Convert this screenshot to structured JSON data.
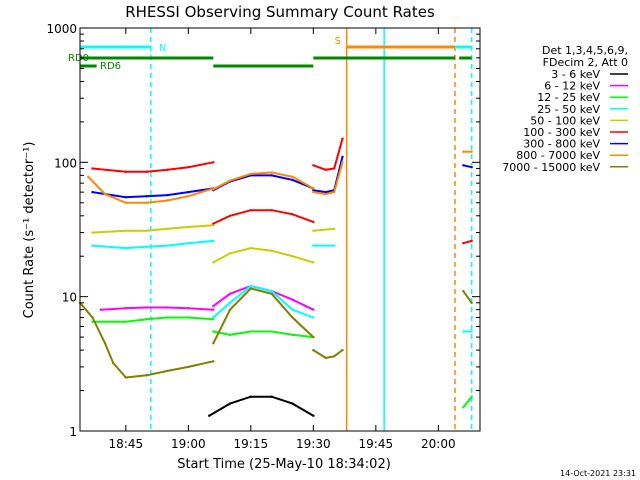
{
  "chart_data": {
    "type": "line",
    "title": "RHESSI Observing Summary Count Rates",
    "xlabel": "Start Time (25-May-10 18:34:02)",
    "ylabel": "Count Rate (s⁻¹ detector⁻¹)",
    "yscale": "log",
    "ylim": [
      1,
      1000
    ],
    "xlim": [
      "18:34",
      "20:10"
    ],
    "xtick_labels": [
      "18:45",
      "19:00",
      "19:15",
      "19:30",
      "19:45",
      "20:00"
    ],
    "ytick_labels": [
      "1",
      "10",
      "100",
      "1000"
    ],
    "legend_header": [
      "Det 1,3,4,5,6,9,",
      "FDecim 2, Att 0"
    ],
    "footer": "14-Oct-2021 23:31",
    "flag_bars": [
      {
        "label": "N",
        "color": "#00ffff",
        "row": "top",
        "spans": [
          [
            "18:34",
            "18:51"
          ],
          [
            "19:47",
            "20:08"
          ]
        ]
      },
      {
        "label": "S",
        "color": "#ff8800",
        "row": "top",
        "spans": [
          [
            "19:38",
            "20:04"
          ]
        ]
      },
      {
        "label": "RD0",
        "color": "#008800",
        "row": "middle",
        "spans": [
          [
            "18:34",
            "19:06"
          ],
          [
            "19:30",
            "20:04"
          ],
          [
            "20:05",
            "20:08"
          ]
        ]
      },
      {
        "label": "RD6",
        "color": "#008800",
        "row": "bottom",
        "spans": [
          [
            "18:34",
            "18:38"
          ],
          [
            "19:06",
            "19:30"
          ]
        ]
      }
    ],
    "vertical_markers": [
      {
        "time": "18:51",
        "color": "#00ffff",
        "style": "dashed"
      },
      {
        "time": "19:38",
        "color": "#ff8800",
        "style": "solid"
      },
      {
        "time": "19:47",
        "color": "#00ffff",
        "style": "solid"
      },
      {
        "time": "20:04",
        "color": "#ff8800",
        "style": "dashed"
      },
      {
        "time": "20:08",
        "color": "#00ffff",
        "style": "dashed"
      }
    ],
    "series": [
      {
        "name": "3 - 6 keV",
        "color": "#000000",
        "segments": [
          {
            "t": [
              "19:05",
              "19:10",
              "19:15",
              "19:20",
              "19:25",
              "19:30"
            ],
            "v": [
              1.3,
              1.6,
              1.8,
              1.8,
              1.6,
              1.3
            ]
          }
        ]
      },
      {
        "name": "6 - 12 keV",
        "color": "#ff00ff",
        "segments": [
          {
            "t": [
              "18:39",
              "18:45",
              "18:50",
              "18:55",
              "19:00",
              "19:06"
            ],
            "v": [
              8.0,
              8.2,
              8.3,
              8.3,
              8.2,
              8.0
            ]
          },
          {
            "t": [
              "19:06",
              "19:10",
              "19:15",
              "19:20",
              "19:25",
              "19:30"
            ],
            "v": [
              8.5,
              10.5,
              12.0,
              11.0,
              9.5,
              8.0
            ]
          }
        ]
      },
      {
        "name": "12 - 25 keV",
        "color": "#00ff00",
        "segments": [
          {
            "t": [
              "18:37",
              "18:45",
              "18:50",
              "18:55",
              "19:00",
              "19:06"
            ],
            "v": [
              6.5,
              6.5,
              6.8,
              7.0,
              7.0,
              6.8
            ]
          },
          {
            "t": [
              "19:06",
              "19:10",
              "19:15",
              "19:20",
              "19:25",
              "19:30"
            ],
            "v": [
              5.5,
              5.2,
              5.5,
              5.5,
              5.2,
              5.0
            ]
          },
          {
            "t": [
              "20:06",
              "20:08"
            ],
            "v": [
              1.5,
              1.8
            ]
          }
        ]
      },
      {
        "name": "25 - 50 keV",
        "color": "#00ffff",
        "segments": [
          {
            "t": [
              "18:37",
              "18:45",
              "18:50",
              "18:55",
              "19:00",
              "19:06"
            ],
            "v": [
              24,
              23,
              23.5,
              24,
              25,
              26
            ]
          },
          {
            "t": [
              "19:06",
              "19:10",
              "19:15",
              "19:20",
              "19:25",
              "19:30"
            ],
            "v": [
              7,
              9,
              12,
              11,
              8,
              7
            ]
          },
          {
            "t": [
              "19:30",
              "19:35"
            ],
            "v": [
              24,
              24
            ]
          },
          {
            "t": [
              "20:06",
              "20:08"
            ],
            "v": [
              5.5,
              5.5
            ]
          }
        ]
      },
      {
        "name": "50 - 100 keV",
        "color": "#cccc00",
        "segments": [
          {
            "t": [
              "18:37",
              "18:45",
              "18:50",
              "18:55",
              "19:00",
              "19:06"
            ],
            "v": [
              30,
              31,
              31,
              32,
              33,
              34
            ]
          },
          {
            "t": [
              "19:06",
              "19:10",
              "19:15",
              "19:20",
              "19:25",
              "19:30"
            ],
            "v": [
              18,
              21,
              23,
              22,
              20,
              18
            ]
          },
          {
            "t": [
              "19:30",
              "19:35"
            ],
            "v": [
              31,
              32
            ]
          }
        ]
      },
      {
        "name": "100 - 300 keV",
        "color": "#ff0000",
        "segments": [
          {
            "t": [
              "18:37",
              "18:45",
              "18:50",
              "18:55",
              "19:00",
              "19:06"
            ],
            "v": [
              90,
              85,
              85,
              88,
              92,
              100
            ]
          },
          {
            "t": [
              "19:06",
              "19:10",
              "19:15",
              "19:20",
              "19:25",
              "19:30"
            ],
            "v": [
              35,
              40,
              44,
              44,
              41,
              36
            ]
          },
          {
            "t": [
              "19:30",
              "19:33",
              "19:35",
              "19:37"
            ],
            "v": [
              95,
              88,
              90,
              150
            ]
          },
          {
            "t": [
              "20:06",
              "20:08"
            ],
            "v": [
              25,
              26
            ]
          }
        ]
      },
      {
        "name": "300 - 800 keV",
        "color": "#0000ff",
        "segments": [
          {
            "t": [
              "18:37",
              "18:45",
              "18:50",
              "18:55",
              "19:00",
              "19:06"
            ],
            "v": [
              60,
              55,
              56,
              57,
              60,
              64
            ]
          },
          {
            "t": [
              "19:06",
              "19:10",
              "19:15",
              "19:20",
              "19:25",
              "19:30"
            ],
            "v": [
              62,
              72,
              80,
              80,
              74,
              64
            ]
          },
          {
            "t": [
              "19:30",
              "19:33",
              "19:35",
              "19:37"
            ],
            "v": [
              62,
              60,
              62,
              110
            ]
          },
          {
            "t": [
              "20:06",
              "20:08"
            ],
            "v": [
              95,
              92
            ]
          }
        ]
      },
      {
        "name": "800 - 7000 keV",
        "color": "#ff8800",
        "segments": [
          {
            "t": [
              "18:36",
              "18:40",
              "18:45",
              "18:50",
              "18:55",
              "19:00",
              "19:06"
            ],
            "v": [
              78,
              58,
              50,
              50,
              52,
              56,
              64
            ]
          },
          {
            "t": [
              "19:06",
              "19:10",
              "19:15",
              "19:20",
              "19:25",
              "19:30"
            ],
            "v": [
              63,
              73,
              82,
              84,
              78,
              64
            ]
          },
          {
            "t": [
              "19:30",
              "19:33",
              "19:35",
              "19:37"
            ],
            "v": [
              60,
              58,
              60,
              100
            ]
          },
          {
            "t": [
              "20:06",
              "20:08"
            ],
            "v": [
              120,
              120
            ]
          }
        ]
      },
      {
        "name": "7000 - 15000 keV",
        "color": "#808000",
        "segments": [
          {
            "t": [
              "18:34",
              "18:37",
              "18:40",
              "18:42",
              "18:45",
              "18:50",
              "18:55",
              "19:00",
              "19:06"
            ],
            "v": [
              9,
              7,
              4.5,
              3.2,
              2.5,
              2.6,
              2.8,
              3.0,
              3.3
            ]
          },
          {
            "t": [
              "19:06",
              "19:10",
              "19:15",
              "19:20",
              "19:25",
              "19:30"
            ],
            "v": [
              4.5,
              8,
              11.5,
              10.5,
              7,
              5
            ]
          },
          {
            "t": [
              "19:30",
              "19:33",
              "19:35",
              "19:37"
            ],
            "v": [
              4,
              3.5,
              3.6,
              4.0
            ]
          },
          {
            "t": [
              "20:06",
              "20:08"
            ],
            "v": [
              11,
              9
            ]
          }
        ]
      }
    ]
  }
}
